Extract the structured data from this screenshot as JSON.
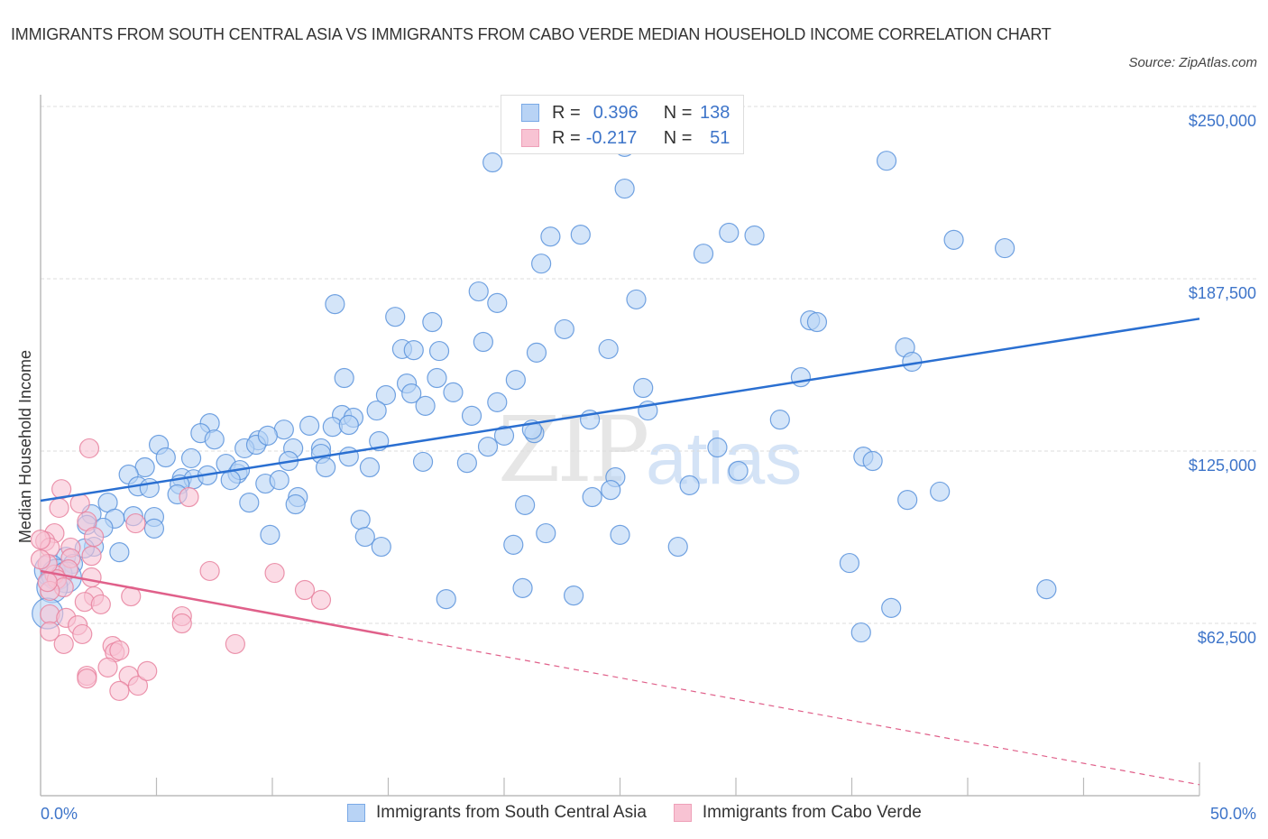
{
  "title": "IMMIGRANTS FROM SOUTH CENTRAL ASIA VS IMMIGRANTS FROM CABO VERDE MEDIAN HOUSEHOLD INCOME CORRELATION CHART",
  "source": "Source: ZipAtlas.com",
  "watermark": {
    "zip": "ZIP",
    "atlas": "atlas"
  },
  "colors": {
    "blue_fill": "#b8d3f5",
    "blue_stroke": "#5b93dc",
    "blue_line": "#2a6fd1",
    "pink_fill": "#f8c3d3",
    "pink_stroke": "#e8829f",
    "pink_line": "#e0608a",
    "axis_text": "#3d74c9"
  },
  "legend": {
    "rows": [
      {
        "r_label": "R =",
        "r_value": "0.396",
        "n_label": "N =",
        "n_value": "138"
      },
      {
        "r_label": "R =",
        "r_value": "-0.217",
        "n_label": "N =",
        "n_value": "51"
      }
    ]
  },
  "chart_data": {
    "type": "scatter",
    "title": "IMMIGRANTS FROM SOUTH CENTRAL ASIA VS IMMIGRANTS FROM CABO VERDE MEDIAN HOUSEHOLD INCOME CORRELATION CHART",
    "xlabel": "",
    "ylabel": "Median Household Income",
    "xlim": [
      0,
      50
    ],
    "ylim": [
      0,
      262500
    ],
    "x_ticks": [
      0,
      5,
      10,
      15,
      20,
      25,
      30,
      35,
      40,
      45,
      50
    ],
    "x_tick_labels": {
      "0": "0.0%",
      "50": "50.0%"
    },
    "y_ticks": [
      62500,
      125000,
      187500,
      250000
    ],
    "y_tick_labels": [
      "$62,500",
      "$125,000",
      "$187,500",
      "$250,000"
    ],
    "grid": true,
    "legend_position": "top-center",
    "series": [
      {
        "name": "Immigrants from South Central Asia",
        "R": 0.396,
        "N": 138,
        "trend": {
          "x": [
            0,
            50
          ],
          "y": [
            107000,
            173000
          ],
          "dashed_from": null
        },
        "points": [
          [
            19.5,
            229700
          ],
          [
            25.2,
            235300
          ],
          [
            25.2,
            220200
          ],
          [
            36.5,
            230300
          ],
          [
            22.0,
            202800
          ],
          [
            23.3,
            203500
          ],
          [
            29.7,
            204200
          ],
          [
            30.8,
            203200
          ],
          [
            39.4,
            201600
          ],
          [
            41.6,
            198600
          ],
          [
            21.6,
            193000
          ],
          [
            28.6,
            196600
          ],
          [
            18.9,
            182900
          ],
          [
            19.7,
            178700
          ],
          [
            25.7,
            180000
          ],
          [
            12.7,
            178300
          ],
          [
            15.3,
            173700
          ],
          [
            16.9,
            171800
          ],
          [
            22.6,
            169200
          ],
          [
            33.2,
            172400
          ],
          [
            33.5,
            171800
          ],
          [
            15.6,
            162000
          ],
          [
            16.1,
            161600
          ],
          [
            17.2,
            161300
          ],
          [
            19.1,
            164600
          ],
          [
            21.4,
            160700
          ],
          [
            24.5,
            162000
          ],
          [
            37.3,
            162600
          ],
          [
            37.6,
            157400
          ],
          [
            13.1,
            151500
          ],
          [
            15.8,
            149500
          ],
          [
            17.1,
            151500
          ],
          [
            20.5,
            150800
          ],
          [
            32.8,
            151800
          ],
          [
            14.9,
            145300
          ],
          [
            16.0,
            145900
          ],
          [
            17.8,
            146300
          ],
          [
            19.7,
            142700
          ],
          [
            26.0,
            147900
          ],
          [
            16.6,
            141400
          ],
          [
            14.5,
            139700
          ],
          [
            13.0,
            138100
          ],
          [
            13.5,
            137100
          ],
          [
            18.6,
            137800
          ],
          [
            23.7,
            136400
          ],
          [
            26.2,
            139700
          ],
          [
            31.9,
            136400
          ],
          [
            7.3,
            135100
          ],
          [
            5.1,
            127300
          ],
          [
            6.9,
            131500
          ],
          [
            7.5,
            129200
          ],
          [
            9.4,
            128900
          ],
          [
            10.5,
            132800
          ],
          [
            11.6,
            134200
          ],
          [
            12.6,
            133800
          ],
          [
            13.3,
            134500
          ],
          [
            14.6,
            128600
          ],
          [
            20.0,
            130600
          ],
          [
            21.3,
            131500
          ],
          [
            19.3,
            126600
          ],
          [
            29.2,
            126300
          ],
          [
            8.8,
            126000
          ],
          [
            9.3,
            127300
          ],
          [
            9.8,
            130600
          ],
          [
            10.9,
            126000
          ],
          [
            12.1,
            126000
          ],
          [
            12.1,
            124000
          ],
          [
            16.5,
            121100
          ],
          [
            18.4,
            120700
          ],
          [
            21.2,
            132800
          ],
          [
            5.4,
            122700
          ],
          [
            4.5,
            119100
          ],
          [
            3.8,
            116500
          ],
          [
            6.5,
            122400
          ],
          [
            8.0,
            120400
          ],
          [
            8.5,
            116800
          ],
          [
            8.6,
            118100
          ],
          [
            13.3,
            123000
          ],
          [
            14.2,
            119100
          ],
          [
            12.3,
            119100
          ],
          [
            9.7,
            113200
          ],
          [
            10.3,
            114500
          ],
          [
            10.7,
            121400
          ],
          [
            6.1,
            115200
          ],
          [
            6.6,
            114800
          ],
          [
            8.2,
            114500
          ],
          [
            7.2,
            116200
          ],
          [
            4.2,
            112200
          ],
          [
            4.7,
            111600
          ],
          [
            6.0,
            112900
          ],
          [
            2.9,
            106300
          ],
          [
            5.9,
            109300
          ],
          [
            9.0,
            106300
          ],
          [
            11.1,
            108300
          ],
          [
            11.0,
            105700
          ],
          [
            24.8,
            115500
          ],
          [
            24.6,
            110900
          ],
          [
            23.8,
            108300
          ],
          [
            20.9,
            105400
          ],
          [
            28.0,
            112600
          ],
          [
            30.1,
            117800
          ],
          [
            35.5,
            123000
          ],
          [
            35.9,
            121400
          ],
          [
            38.8,
            110300
          ],
          [
            37.4,
            107300
          ],
          [
            2.2,
            102100
          ],
          [
            4.0,
            101400
          ],
          [
            4.9,
            101100
          ],
          [
            3.2,
            100500
          ],
          [
            2.0,
            98200
          ],
          [
            2.7,
            97200
          ],
          [
            4.9,
            96900
          ],
          [
            2.3,
            90300
          ],
          [
            9.9,
            94600
          ],
          [
            13.8,
            100100
          ],
          [
            14.0,
            93900
          ],
          [
            14.7,
            90300
          ],
          [
            21.8,
            95200
          ],
          [
            25.0,
            94600
          ],
          [
            20.4,
            91000
          ],
          [
            27.5,
            90300
          ],
          [
            3.4,
            88300
          ],
          [
            1.9,
            89700
          ],
          [
            1.1,
            86700
          ],
          [
            1.4,
            84100
          ],
          [
            0.4,
            81800
          ],
          [
            0.7,
            80200
          ],
          [
            1.1,
            79200
          ],
          [
            34.9,
            84400
          ],
          [
            20.8,
            75300
          ],
          [
            23.0,
            72600
          ],
          [
            17.5,
            71300
          ],
          [
            43.4,
            74900
          ],
          [
            36.7,
            68100
          ],
          [
            35.4,
            59200
          ],
          [
            0.5,
            75600
          ],
          [
            0.3,
            66100
          ]
        ]
      },
      {
        "name": "Immigrants from Cabo Verde",
        "R": -0.217,
        "N": 51,
        "trend": {
          "x": [
            0,
            50
          ],
          "y": [
            81500,
            4000
          ],
          "dashed_from": 15
        },
        "points": [
          [
            2.1,
            126000
          ],
          [
            0.9,
            111200
          ],
          [
            0.8,
            104400
          ],
          [
            1.7,
            106000
          ],
          [
            2.0,
            99500
          ],
          [
            2.3,
            93900
          ],
          [
            0.6,
            95200
          ],
          [
            0.2,
            92300
          ],
          [
            0.4,
            90000
          ],
          [
            1.3,
            90000
          ],
          [
            1.3,
            86100
          ],
          [
            2.2,
            87000
          ],
          [
            1.2,
            82100
          ],
          [
            0.6,
            80200
          ],
          [
            0.7,
            78500
          ],
          [
            1.0,
            75600
          ],
          [
            0.4,
            74300
          ],
          [
            2.2,
            79200
          ],
          [
            6.4,
            108300
          ],
          [
            4.1,
            98800
          ],
          [
            7.3,
            81500
          ],
          [
            10.1,
            80800
          ],
          [
            11.4,
            74600
          ],
          [
            12.1,
            71000
          ],
          [
            2.3,
            72300
          ],
          [
            1.9,
            70300
          ],
          [
            2.6,
            69400
          ],
          [
            3.9,
            72300
          ],
          [
            0.4,
            65800
          ],
          [
            1.1,
            64500
          ],
          [
            1.6,
            61800
          ],
          [
            1.8,
            58600
          ],
          [
            6.1,
            65100
          ],
          [
            6.1,
            62500
          ],
          [
            1.0,
            55000
          ],
          [
            3.1,
            54300
          ],
          [
            8.4,
            55000
          ],
          [
            3.2,
            52000
          ],
          [
            3.4,
            52700
          ],
          [
            2.9,
            46500
          ],
          [
            2.0,
            43500
          ],
          [
            2.0,
            42500
          ],
          [
            3.8,
            43500
          ],
          [
            3.4,
            38000
          ],
          [
            4.2,
            39900
          ],
          [
            4.6,
            45200
          ],
          [
            0.3,
            84100
          ],
          [
            0.3,
            77500
          ],
          [
            0.0,
            85700
          ],
          [
            0.0,
            92900
          ],
          [
            0.4,
            59600
          ]
        ]
      }
    ]
  }
}
